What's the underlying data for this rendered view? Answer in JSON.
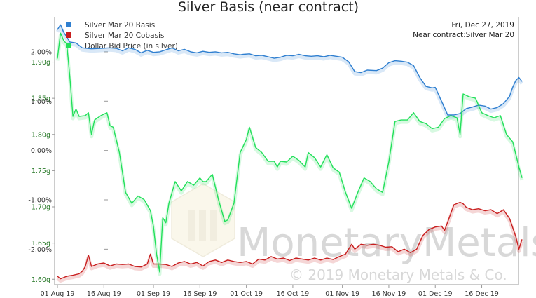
{
  "chart_data": {
    "type": "line",
    "title": "Silver Basis (near contract)",
    "date_info": "Fri, Dec 27, 2019",
    "contract_info": "Near contract:Silver Mar 20",
    "x_start": "2019-08-01",
    "x_ticks": [
      {
        "label": "01 Aug 19",
        "date": "2019-08-01"
      },
      {
        "label": "16 Aug 19",
        "date": "2019-08-16"
      },
      {
        "label": "01 Sep 19",
        "date": "2019-09-01"
      },
      {
        "label": "16 Sep 19",
        "date": "2019-09-16"
      },
      {
        "label": "01 Oct 19",
        "date": "2019-10-01"
      },
      {
        "label": "16 Oct 19",
        "date": "2019-10-16"
      },
      {
        "label": "01 Nov 19",
        "date": "2019-11-01"
      },
      {
        "label": "16 Nov 19",
        "date": "2019-11-16"
      },
      {
        "label": "01 Dec 19",
        "date": "2019-12-01"
      },
      {
        "label": "16 Dec 19",
        "date": "2019-12-16"
      }
    ],
    "y_left": {
      "ticks": [
        "1.90g",
        "1.85g",
        "1.80g",
        "1.75g",
        "1.70g",
        "1.65g",
        "1.60g"
      ],
      "values": [
        1.9,
        1.85,
        1.8,
        1.75,
        1.7,
        1.65,
        1.6
      ],
      "ylim": [
        1.5925,
        1.9625
      ]
    },
    "y_right": {
      "ticks": [
        "2.00%",
        "1.00%",
        "0.00%",
        "-1.00%",
        "-2.00%"
      ],
      "values": [
        2,
        1,
        0,
        -1,
        -2
      ],
      "ylim": [
        -2.72,
        2.71
      ]
    },
    "legend": [
      {
        "label": "Silver Mar 20 Basis",
        "color": "#2f7fd0"
      },
      {
        "label": "Silver Mar 20 Cobasis",
        "color": "#c81e1e"
      },
      {
        "label": "Dollar Bid Price (in silver)",
        "color": "#22e05a"
      }
    ],
    "series": [
      {
        "name": "Silver Mar 20 Basis",
        "axis": "right",
        "color": "#2f7fd0",
        "points": [
          [
            0,
            2.45
          ],
          [
            1,
            2.55
          ],
          [
            2,
            2.4
          ],
          [
            3,
            2.3
          ],
          [
            4,
            2.2
          ],
          [
            6,
            2.18
          ],
          [
            8,
            2.08
          ],
          [
            11,
            2.06
          ],
          [
            14,
            2.07
          ],
          [
            17,
            2.08
          ],
          [
            19,
            2.07
          ],
          [
            21,
            2.02
          ],
          [
            23,
            2.08
          ],
          [
            25,
            2.05
          ],
          [
            27,
            1.98
          ],
          [
            29,
            2.03
          ],
          [
            31,
            1.99
          ],
          [
            33,
            2.0
          ],
          [
            35,
            2.04
          ],
          [
            37,
            2.08
          ],
          [
            39,
            2.02
          ],
          [
            41,
            2.05
          ],
          [
            43,
            2.0
          ],
          [
            45,
            1.98
          ],
          [
            47,
            2.01
          ],
          [
            49,
            1.99
          ],
          [
            51,
            2.0
          ],
          [
            53,
            1.98
          ],
          [
            55,
            1.99
          ],
          [
            57,
            1.96
          ],
          [
            59,
            1.94
          ],
          [
            60,
            1.95
          ],
          [
            62,
            1.96
          ],
          [
            64,
            1.92
          ],
          [
            66,
            1.93
          ],
          [
            68,
            1.9
          ],
          [
            70,
            1.87
          ],
          [
            72,
            1.89
          ],
          [
            74,
            1.93
          ],
          [
            76,
            1.92
          ],
          [
            78,
            1.95
          ],
          [
            80,
            1.92
          ],
          [
            82,
            1.91
          ],
          [
            84,
            1.92
          ],
          [
            86,
            1.9
          ],
          [
            88,
            1.93
          ],
          [
            90,
            1.91
          ],
          [
            92,
            1.89
          ],
          [
            94,
            1.8
          ],
          [
            96,
            1.6
          ],
          [
            98,
            1.58
          ],
          [
            100,
            1.63
          ],
          [
            103,
            1.62
          ],
          [
            105,
            1.67
          ],
          [
            107,
            1.78
          ],
          [
            109,
            1.82
          ],
          [
            111,
            1.81
          ],
          [
            113,
            1.79
          ],
          [
            115,
            1.72
          ],
          [
            117,
            1.48
          ],
          [
            119,
            1.3
          ],
          [
            121,
            1.27
          ],
          [
            122,
            1.28
          ],
          [
            124,
            1.0
          ],
          [
            126,
            0.72
          ],
          [
            128,
            0.72
          ],
          [
            130,
            0.75
          ],
          [
            132,
            0.85
          ],
          [
            134,
            0.88
          ],
          [
            136,
            0.92
          ],
          [
            138,
            0.9
          ],
          [
            140,
            0.84
          ],
          [
            142,
            0.87
          ],
          [
            144,
            0.95
          ],
          [
            146,
            1.1
          ],
          [
            147,
            1.28
          ],
          [
            148,
            1.42
          ],
          [
            149,
            1.48
          ],
          [
            150,
            1.4
          ]
        ]
      },
      {
        "name": "Silver Mar 20 Cobasis",
        "axis": "right",
        "color": "#c81e1e",
        "points": [
          [
            0,
            -2.55
          ],
          [
            1,
            -2.6
          ],
          [
            3,
            -2.55
          ],
          [
            5,
            -2.53
          ],
          [
            7,
            -2.5
          ],
          [
            8,
            -2.45
          ],
          [
            9,
            -2.35
          ],
          [
            10,
            -2.12
          ],
          [
            11,
            -2.35
          ],
          [
            13,
            -2.3
          ],
          [
            15,
            -2.28
          ],
          [
            17,
            -2.34
          ],
          [
            19,
            -2.3
          ],
          [
            21,
            -2.31
          ],
          [
            23,
            -2.3
          ],
          [
            25,
            -2.35
          ],
          [
            27,
            -2.36
          ],
          [
            29,
            -2.3
          ],
          [
            30,
            -2.1
          ],
          [
            31,
            -2.3
          ],
          [
            33,
            -2.3
          ],
          [
            35,
            -2.31
          ],
          [
            37,
            -2.35
          ],
          [
            39,
            -2.28
          ],
          [
            41,
            -2.25
          ],
          [
            43,
            -2.3
          ],
          [
            45,
            -2.27
          ],
          [
            47,
            -2.34
          ],
          [
            49,
            -2.25
          ],
          [
            51,
            -2.22
          ],
          [
            53,
            -2.27
          ],
          [
            55,
            -2.22
          ],
          [
            57,
            -2.25
          ],
          [
            59,
            -2.27
          ],
          [
            61,
            -2.25
          ],
          [
            63,
            -2.3
          ],
          [
            65,
            -2.2
          ],
          [
            67,
            -2.22
          ],
          [
            69,
            -2.15
          ],
          [
            71,
            -2.2
          ],
          [
            73,
            -2.18
          ],
          [
            75,
            -2.23
          ],
          [
            77,
            -2.18
          ],
          [
            79,
            -2.2
          ],
          [
            81,
            -2.22
          ],
          [
            83,
            -2.18
          ],
          [
            85,
            -2.22
          ],
          [
            87,
            -2.18
          ],
          [
            89,
            -2.21
          ],
          [
            91,
            -2.15
          ],
          [
            93,
            -2.1
          ],
          [
            95,
            -1.9
          ],
          [
            96,
            -2.0
          ],
          [
            98,
            -1.9
          ],
          [
            100,
            -1.92
          ],
          [
            102,
            -1.9
          ],
          [
            104,
            -1.92
          ],
          [
            106,
            -1.96
          ],
          [
            108,
            -1.95
          ],
          [
            110,
            -2.05
          ],
          [
            112,
            -2.0
          ],
          [
            114,
            -2.07
          ],
          [
            116,
            -2.0
          ],
          [
            118,
            -1.72
          ],
          [
            120,
            -1.6
          ],
          [
            122,
            -1.55
          ],
          [
            124,
            -1.53
          ],
          [
            125,
            -1.62
          ],
          [
            126,
            -1.45
          ],
          [
            128,
            -1.1
          ],
          [
            130,
            -1.05
          ],
          [
            131,
            -1.08
          ],
          [
            132,
            -1.15
          ],
          [
            134,
            -1.2
          ],
          [
            136,
            -1.18
          ],
          [
            138,
            -1.22
          ],
          [
            140,
            -1.2
          ],
          [
            142,
            -1.28
          ],
          [
            144,
            -1.2
          ],
          [
            146,
            -1.38
          ],
          [
            148,
            -1.75
          ],
          [
            149,
            -2.0
          ],
          [
            150,
            -1.8
          ]
        ]
      },
      {
        "name": "Dollar Bid Price (in silver)",
        "axis": "left",
        "color": "#22e05a",
        "points": [
          [
            0,
            1.905
          ],
          [
            1,
            1.94
          ],
          [
            2,
            1.93
          ],
          [
            3,
            1.925
          ],
          [
            4,
            1.88
          ],
          [
            5,
            1.825
          ],
          [
            6,
            1.835
          ],
          [
            7,
            1.825
          ],
          [
            9,
            1.826
          ],
          [
            10,
            1.83
          ],
          [
            11,
            1.8
          ],
          [
            12,
            1.82
          ],
          [
            14,
            1.826
          ],
          [
            16,
            1.83
          ],
          [
            17,
            1.812
          ],
          [
            18,
            1.81
          ],
          [
            20,
            1.775
          ],
          [
            22,
            1.72
          ],
          [
            24,
            1.705
          ],
          [
            26,
            1.715
          ],
          [
            28,
            1.71
          ],
          [
            30,
            1.695
          ],
          [
            31,
            1.673
          ],
          [
            32,
            1.635
          ],
          [
            33,
            1.61
          ],
          [
            34,
            1.685
          ],
          [
            35,
            1.678
          ],
          [
            36,
            1.705
          ],
          [
            38,
            1.735
          ],
          [
            40,
            1.722
          ],
          [
            42,
            1.735
          ],
          [
            44,
            1.73
          ],
          [
            46,
            1.74
          ],
          [
            47,
            1.735
          ],
          [
            48,
            1.735
          ],
          [
            50,
            1.745
          ],
          [
            52,
            1.71
          ],
          [
            54,
            1.68
          ],
          [
            55,
            1.682
          ],
          [
            57,
            1.705
          ],
          [
            59,
            1.775
          ],
          [
            61,
            1.793
          ],
          [
            62,
            1.81
          ],
          [
            64,
            1.782
          ],
          [
            66,
            1.775
          ],
          [
            68,
            1.763
          ],
          [
            70,
            1.763
          ],
          [
            71,
            1.755
          ],
          [
            72,
            1.763
          ],
          [
            74,
            1.762
          ],
          [
            76,
            1.77
          ],
          [
            78,
            1.764
          ],
          [
            80,
            1.755
          ],
          [
            81,
            1.775
          ],
          [
            83,
            1.768
          ],
          [
            85,
            1.755
          ],
          [
            87,
            1.772
          ],
          [
            89,
            1.754
          ],
          [
            91,
            1.748
          ],
          [
            93,
            1.72
          ],
          [
            95,
            1.698
          ],
          [
            97,
            1.72
          ],
          [
            99,
            1.74
          ],
          [
            101,
            1.735
          ],
          [
            103,
            1.725
          ],
          [
            105,
            1.72
          ],
          [
            107,
            1.762
          ],
          [
            109,
            1.818
          ],
          [
            111,
            1.82
          ],
          [
            113,
            1.82
          ],
          [
            115,
            1.83
          ],
          [
            117,
            1.818
          ],
          [
            119,
            1.815
          ],
          [
            121,
            1.808
          ],
          [
            123,
            1.81
          ],
          [
            125,
            1.822
          ],
          [
            127,
            1.826
          ],
          [
            129,
            1.823
          ],
          [
            130,
            1.8
          ],
          [
            131,
            1.856
          ],
          [
            133,
            1.852
          ],
          [
            135,
            1.85
          ],
          [
            137,
            1.83
          ],
          [
            139,
            1.826
          ],
          [
            141,
            1.823
          ],
          [
            143,
            1.826
          ],
          [
            145,
            1.8
          ],
          [
            147,
            1.79
          ],
          [
            149,
            1.755
          ],
          [
            150,
            1.74
          ]
        ]
      }
    ]
  },
  "watermark": {
    "brand": "MonetaryMetals",
    "copyright": "© 2019 Monetary Metals & Co."
  }
}
